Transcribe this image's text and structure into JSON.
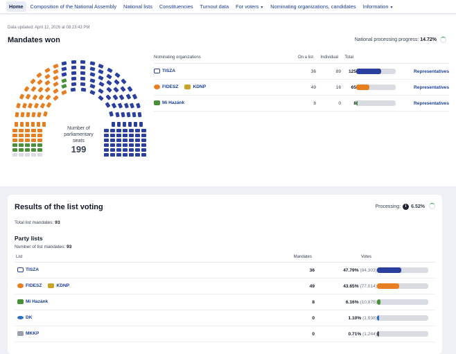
{
  "nav": {
    "items": [
      {
        "label": "Home",
        "active": true
      },
      {
        "label": "Composition of the National Assembly"
      },
      {
        "label": "National lists"
      },
      {
        "label": "Constituencies"
      },
      {
        "label": "Turnout data"
      },
      {
        "label": "For voters",
        "dropdown": true
      },
      {
        "label": "Nominating organizations, candidates"
      },
      {
        "label": "Information",
        "dropdown": true
      }
    ]
  },
  "updated": "Data updated: April 12, 2026 at 08:23:43 PM",
  "mandates": {
    "title": "Mandates won",
    "progress_label": "National processing progress:",
    "progress_value": "14.72%",
    "parliament_label": "Number of parliamentary seats",
    "total_seats": "199",
    "columns": [
      "Nominating organizations",
      "On a list",
      "Individual",
      "Total"
    ],
    "rows": [
      {
        "name": "TISZA",
        "partner": "",
        "on_list": "36",
        "individual": "89",
        "total": "125",
        "share": 0.628,
        "color": "#2b3f9e",
        "link": "Representatives"
      },
      {
        "name": "FIDESZ",
        "partner": "KDNP",
        "on_list": "49",
        "individual": "16",
        "total": "65",
        "share": 0.327,
        "color": "#e67e22",
        "link": "Representatives"
      },
      {
        "name": "Mi Hazánk",
        "partner": "",
        "on_list": "8",
        "individual": "0",
        "total": "8",
        "share": 0.04,
        "color": "#4a8f3a",
        "link": "Representatives"
      }
    ],
    "seat_colors": {
      "tisza": "#2b3f9e",
      "fidesz": "#e67e22",
      "mi_hazank": "#4a8f3a",
      "empty": "#d9dde3"
    }
  },
  "list_voting": {
    "title": "Results of the list voting",
    "processing_label": "Processing:",
    "processing_value": "6.52%",
    "total_label": "Total list mandates:",
    "total_value": "93",
    "party_lists_title": "Party lists",
    "list_mandates_label": "Number of list mandates:",
    "list_mandates_value": "93",
    "columns": [
      "List",
      "Mandates",
      "Votes"
    ],
    "rows": [
      {
        "name": "TISZA",
        "partner": "",
        "mandates": "36",
        "pct": "47.79%",
        "votes": "(84,303)",
        "share": 0.478,
        "color": "#2b3f9e"
      },
      {
        "name": "FIDESZ",
        "partner": "KDNP",
        "mandates": "49",
        "pct": "43.65%",
        "votes": "(77,014)",
        "share": 0.437,
        "color": "#e67e22"
      },
      {
        "name": "Mi Hazánk",
        "partner": "",
        "mandates": "8",
        "pct": "6.16%",
        "votes": "(10,875)",
        "share": 0.062,
        "color": "#4a8f3a"
      },
      {
        "name": "DK",
        "partner": "",
        "mandates": "0",
        "pct": "1.10%",
        "votes": "(1,938)",
        "share": 0.011,
        "color": "#2b6fc4"
      },
      {
        "name": "MKKP",
        "partner": "",
        "mandates": "0",
        "pct": "0.71%",
        "votes": "(1,244)",
        "share": 0.007,
        "color": "#555555"
      }
    ]
  }
}
